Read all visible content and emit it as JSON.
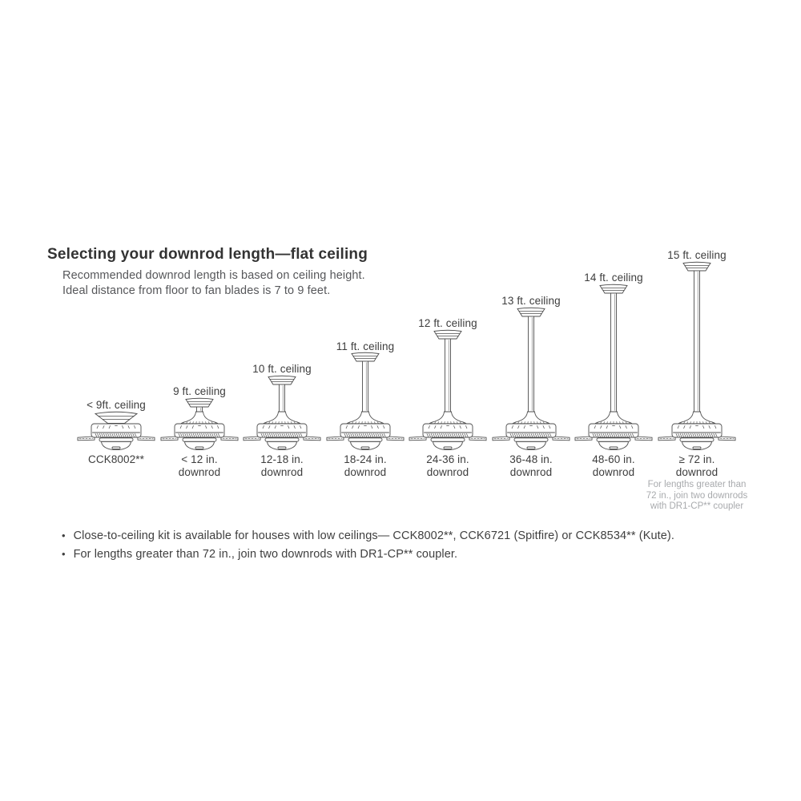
{
  "header": {
    "title": "Selecting your downrod length—flat ceiling",
    "subtitle_line1": "Recommended downrod length is based on ceiling height.",
    "subtitle_line2": "Ideal distance from floor to fan blades is 7 to 9 feet."
  },
  "fans": [
    {
      "ceiling_label": "< 9ft. ceiling",
      "downrod_label": "CCK8002**"
    },
    {
      "ceiling_label": "9 ft. ceiling",
      "downrod_label": "< 12 in.\ndownrod"
    },
    {
      "ceiling_label": "10 ft. ceiling",
      "downrod_label": "12-18 in.\ndownrod"
    },
    {
      "ceiling_label": "11 ft. ceiling",
      "downrod_label": "18-24 in.\ndownrod"
    },
    {
      "ceiling_label": "12 ft. ceiling",
      "downrod_label": "24-36 in.\ndownrod"
    },
    {
      "ceiling_label": "13 ft. ceiling",
      "downrod_label": "36-48 in.\ndownrod"
    },
    {
      "ceiling_label": "14 ft. ceiling",
      "downrod_label": "48-60 in.\ndownrod"
    },
    {
      "ceiling_label": "15 ft. ceiling",
      "downrod_label": "≥ 72 in.\ndownrod",
      "note": "For lengths greater than\n72 in., join two downrods\nwith DR1-CP** coupler"
    }
  ],
  "footnotes": {
    "bullet_icon": "•",
    "items": [
      "Close-to-ceiling kit is available for houses with low ceilings— CCK8002**, CCK6721 (Spitfire) or CCK8534** (Kute).",
      "For lengths greater than 72 in., join two downrods with DR1-CP** coupler."
    ]
  },
  "colors": {
    "line_art": "#4d4d4d",
    "heading_text": "#333333",
    "subtitle_text": "#56575a",
    "body_text": "#3f3f3f",
    "note_text": "#a8aaad"
  }
}
